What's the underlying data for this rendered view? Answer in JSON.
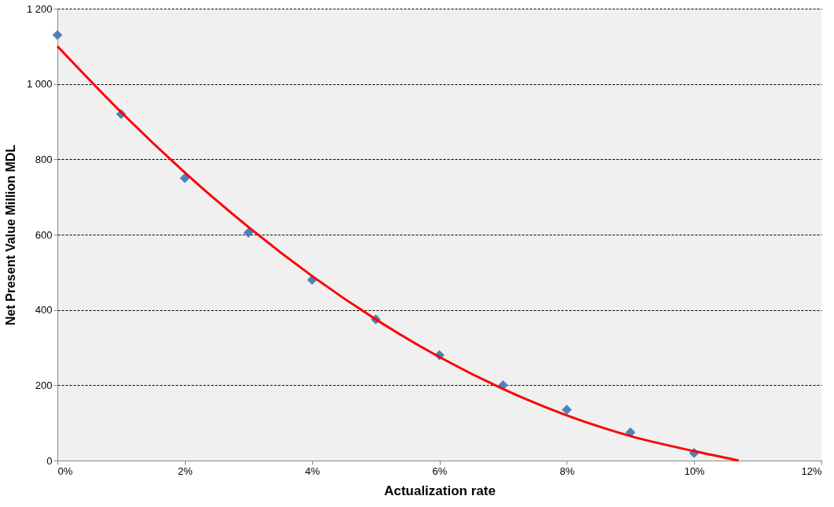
{
  "chart_data": {
    "type": "scatter",
    "xlabel": "Actualization rate",
    "ylabel": "Net Present Value Million MDL",
    "series": [
      {
        "color": "#4f81bd",
        "marker": "diamond",
        "x": [
          0,
          1,
          2,
          3,
          4,
          5,
          6,
          7,
          8,
          9,
          10
        ],
        "values": [
          1130,
          920,
          750,
          605,
          480,
          375,
          280,
          200,
          135,
          75,
          20
        ]
      },
      {
        "type": "line",
        "color": "#ff0000",
        "marker": "none",
        "x": [
          0,
          1,
          2,
          3,
          4,
          5,
          6,
          7,
          8,
          9,
          10,
          10.7
        ],
        "values": [
          1100,
          925,
          765,
          620,
          490,
          375,
          275,
          190,
          120,
          65,
          25,
          0
        ]
      }
    ],
    "xlim": [
      0,
      12
    ],
    "xticks": [
      {
        "value": 0,
        "label": "0%"
      },
      {
        "value": 2,
        "label": "2%"
      },
      {
        "value": 4,
        "label": "4%"
      },
      {
        "value": 6,
        "label": "6%"
      },
      {
        "value": 8,
        "label": "8%"
      },
      {
        "value": 10,
        "label": "10%"
      },
      {
        "value": 12,
        "label": "12%"
      }
    ],
    "ylim": [
      0,
      1200
    ],
    "yticks": [
      0,
      200,
      400,
      600,
      800,
      {
        "value": 1000,
        "label": "1 000"
      },
      {
        "value": 1200,
        "label": "1 200"
      }
    ],
    "grid": "y"
  }
}
